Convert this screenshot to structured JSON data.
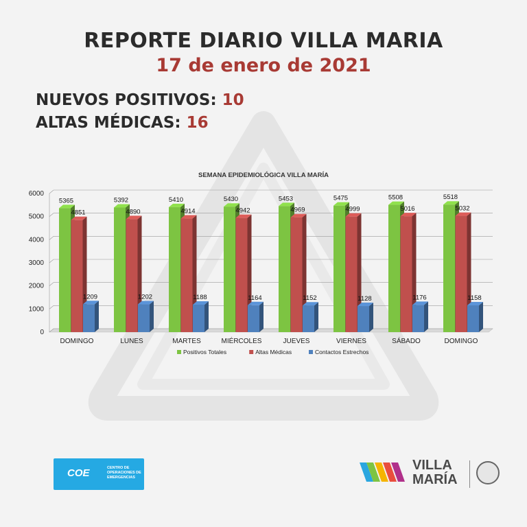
{
  "header": {
    "title": "REPORTE DIARIO VILLA MARIA",
    "date": "17 de enero de 2021"
  },
  "stats": [
    {
      "label": "NUEVOS POSITIVOS:",
      "value": "10"
    },
    {
      "label": "ALTAS MÉDICAS:",
      "value": "16"
    }
  ],
  "chart_data": {
    "type": "bar",
    "title": "SEMANA EPIDEMIOLÓGICA VILLA MARÍA",
    "categories": [
      "DOMINGO",
      "LUNES",
      "MARTES",
      "MIÉRCOLES",
      "JUEVES",
      "VIERNES",
      "SÁBADO",
      "DOMINGO"
    ],
    "series": [
      {
        "name": "Positivos Totales",
        "color": "#7dc442",
        "values": [
          5365,
          5392,
          5410,
          5430,
          5453,
          5475,
          5508,
          5518
        ]
      },
      {
        "name": "Altas Médicas",
        "color": "#c0504d",
        "values": [
          4851,
          4890,
          4914,
          4942,
          4969,
          4999,
          5016,
          5032
        ]
      },
      {
        "name": "Contactos Estrechos",
        "color": "#4f81bd",
        "values": [
          1209,
          1202,
          1188,
          1164,
          1152,
          1128,
          1176,
          1158
        ]
      }
    ],
    "ylim": [
      0,
      6000
    ],
    "yticks": [
      0,
      1000,
      2000,
      3000,
      4000,
      5000,
      6000
    ],
    "grid": true,
    "legend": "bottom"
  },
  "footer": {
    "coe_logo_text": "COE",
    "coe_logo_subtitle": "Centro de Operaciones de Emergencias",
    "brand_line1": "VILLA",
    "brand_line2": "MARÍA"
  }
}
